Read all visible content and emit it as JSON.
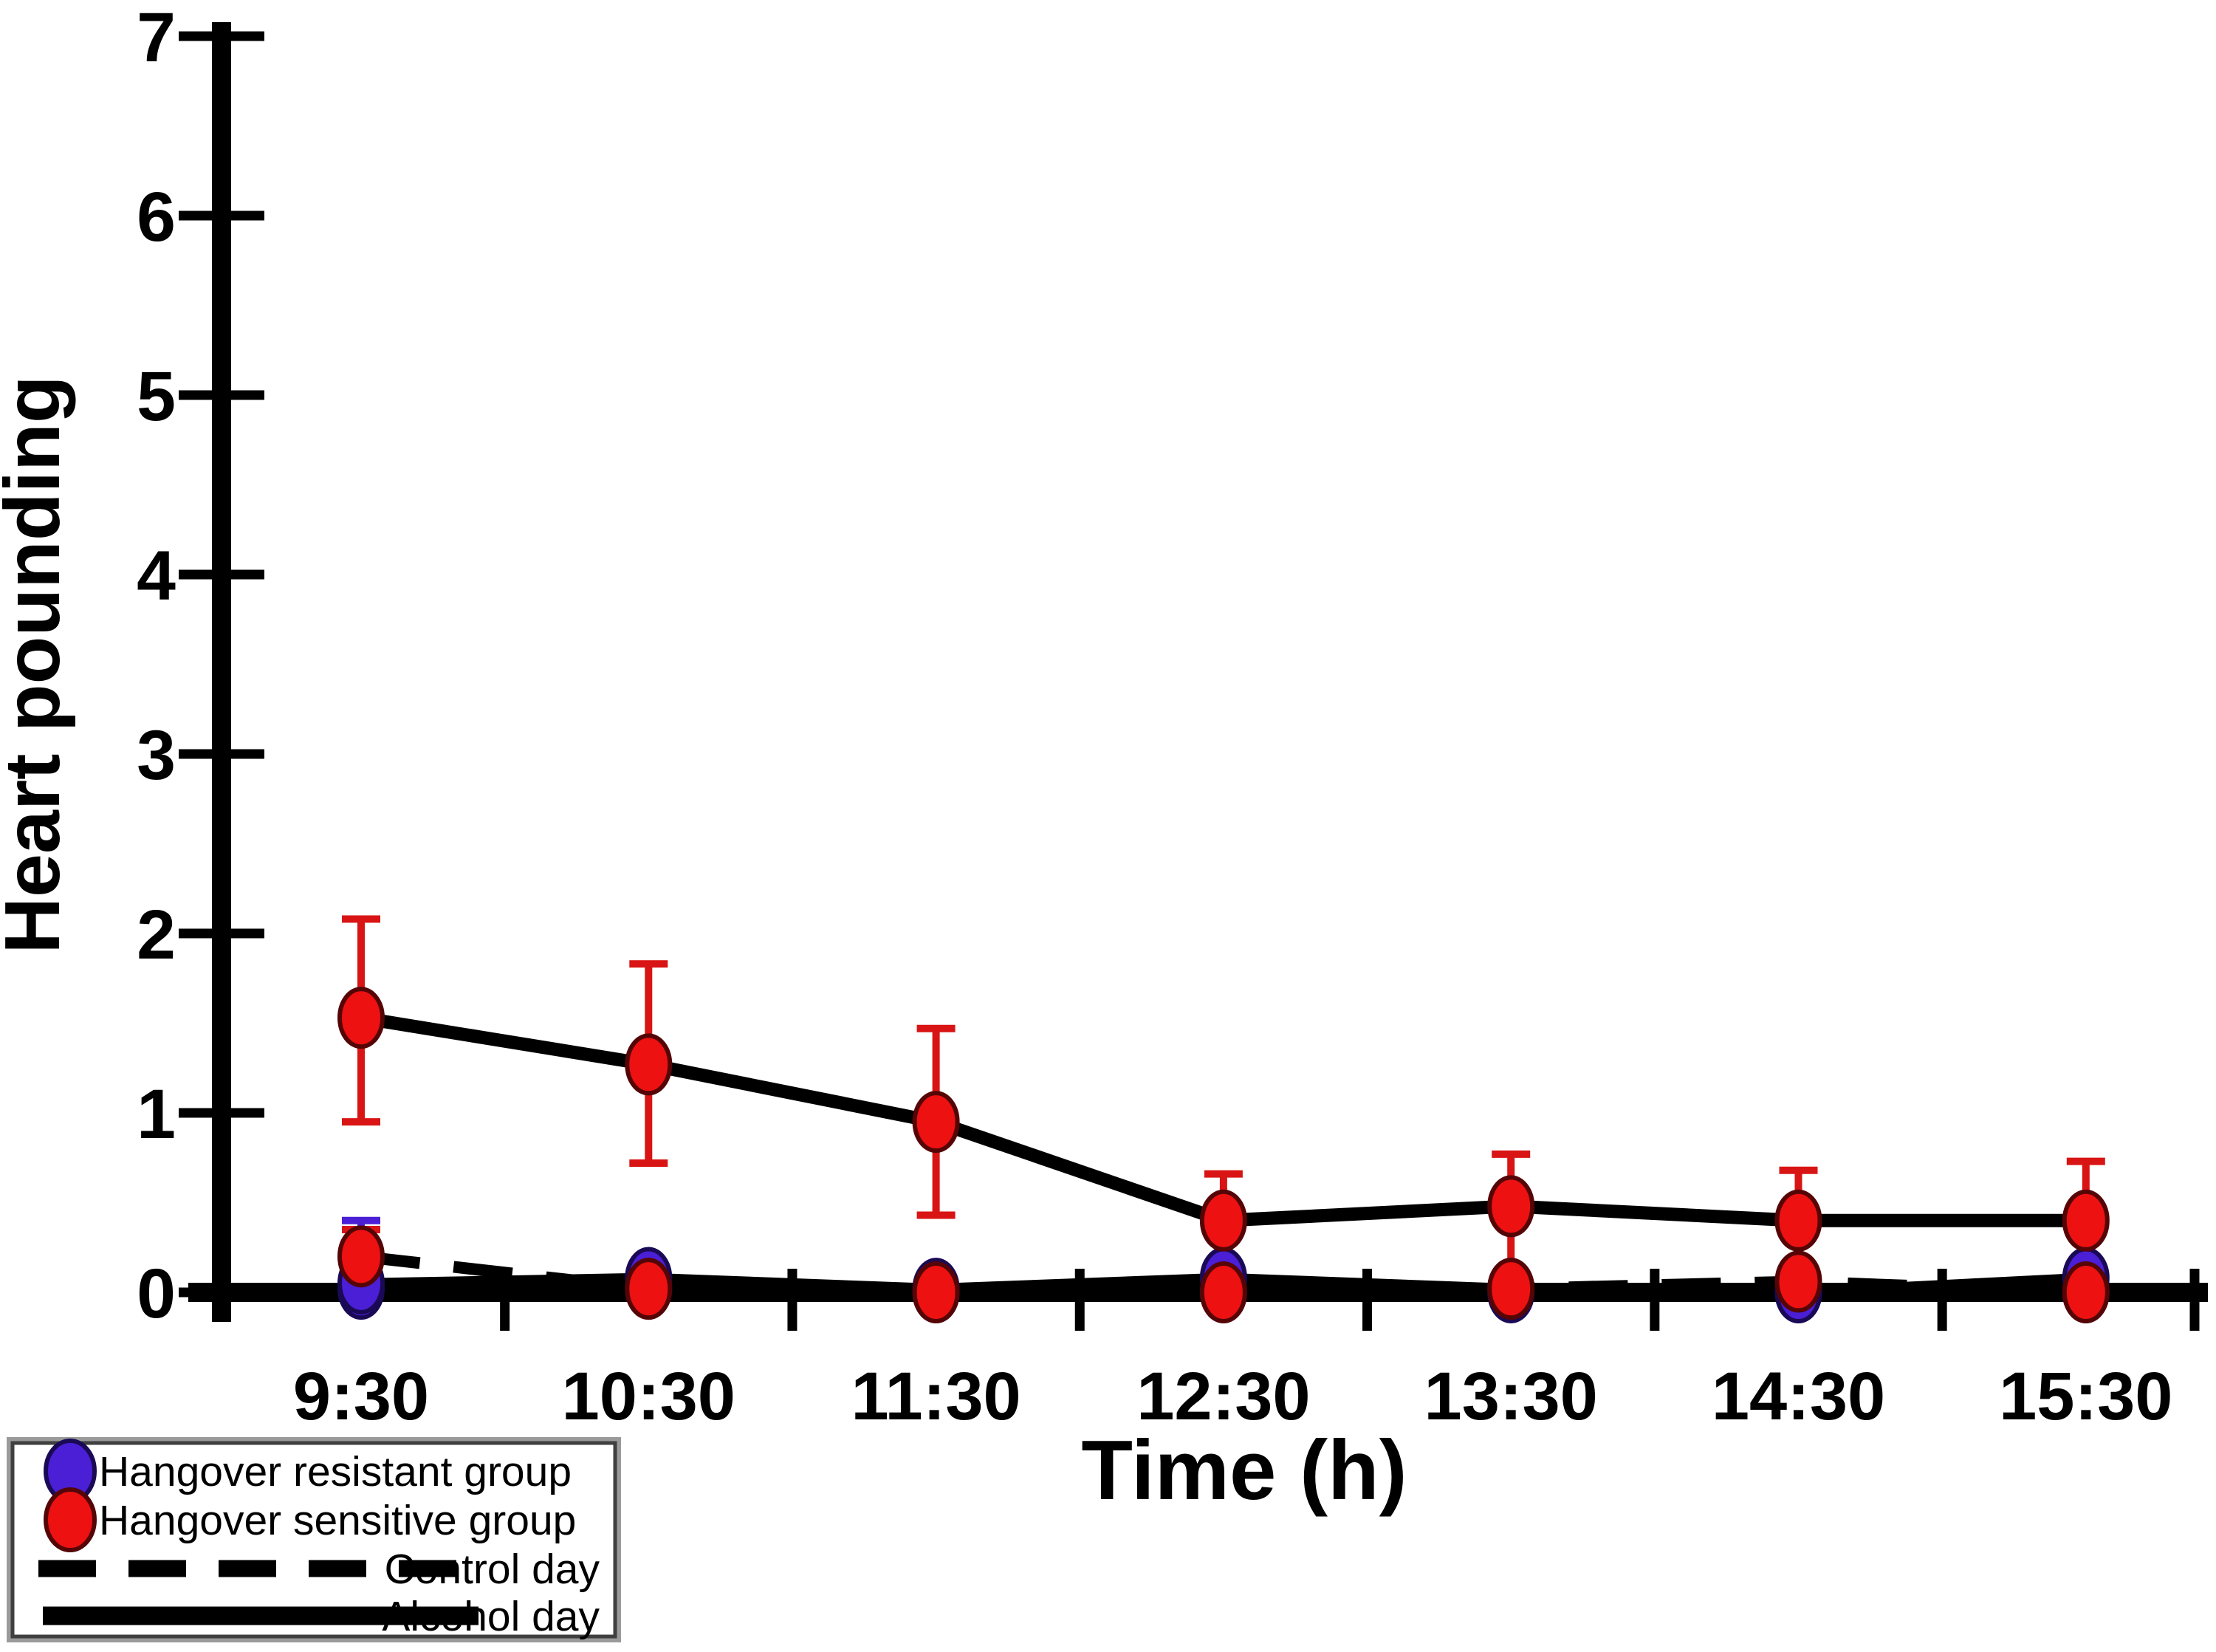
{
  "chart_data": {
    "type": "line",
    "title": "",
    "xlabel": "Time (h)",
    "ylabel": "Heart pounding",
    "categories": [
      "9:30",
      "10:30",
      "11:30",
      "12:30",
      "13:30",
      "14:30",
      "15:30"
    ],
    "y_ticks": [
      7,
      6,
      5,
      4,
      3,
      2,
      1,
      0
    ],
    "ylim": [
      0,
      7
    ],
    "grid": false,
    "legend_position": "bottom-left",
    "axis_color": "#000000",
    "line_color": "#000000",
    "series": [
      {
        "name": "Hangover resistant group - Control day",
        "group": "resistant",
        "day": "control",
        "line_style": "dashed",
        "marker_color": "#4a1fd6",
        "marker_edge": "#1a0a55",
        "error_color": "#4a1fd6",
        "values": [
          0.02,
          0.02,
          0.0,
          0.0,
          0.0,
          0.0,
          0.0
        ],
        "err_lo": [
          null,
          null,
          null,
          null,
          null,
          null,
          null
        ],
        "err_hi": [
          0.4,
          null,
          null,
          null,
          null,
          null,
          null
        ]
      },
      {
        "name": "Hangover resistant group - Alcohol day",
        "group": "resistant",
        "day": "alcohol",
        "line_style": "solid",
        "marker_color": "#4a1fd6",
        "marker_edge": "#1a0a55",
        "error_color": "#4a1fd6",
        "values": [
          0.05,
          0.08,
          0.02,
          0.08,
          0.02,
          0.0,
          0.08
        ],
        "err_lo": [
          null,
          null,
          null,
          null,
          null,
          null,
          null
        ],
        "err_hi": [
          null,
          null,
          null,
          null,
          null,
          null,
          null
        ]
      },
      {
        "name": "Hangover sensitive group - Control day",
        "group": "sensitive",
        "day": "control",
        "line_style": "dashed",
        "marker_color": "#ed1111",
        "marker_edge": "#550505",
        "error_color": "#d91414",
        "values": [
          0.2,
          0.02,
          0.0,
          0.0,
          0.02,
          0.06,
          0.0
        ],
        "err_lo": [
          null,
          null,
          null,
          null,
          null,
          null,
          null
        ],
        "err_hi": [
          0.35,
          null,
          null,
          null,
          null,
          null,
          null
        ]
      },
      {
        "name": "Hangover sensitive group - Alcohol day",
        "group": "sensitive",
        "day": "alcohol",
        "line_style": "solid",
        "marker_color": "#ed1111",
        "marker_edge": "#550505",
        "error_color": "#d91414",
        "values": [
          1.53,
          1.27,
          0.95,
          0.4,
          0.48,
          0.4,
          0.4
        ],
        "err_lo": [
          0.95,
          0.72,
          0.43,
          0.13,
          0.06,
          0.1,
          0.07
        ],
        "err_hi": [
          2.08,
          1.83,
          1.47,
          0.66,
          0.77,
          0.68,
          0.73
        ]
      }
    ],
    "legend": [
      {
        "label": "Hangover resistant group",
        "marker": "circle-icon",
        "color": "#4a1fd6"
      },
      {
        "label": "Hangover sensitive group",
        "marker": "circle-icon",
        "color": "#ed1111"
      },
      {
        "label": "Control day",
        "marker": "dashed-line-icon",
        "color": "#000000"
      },
      {
        "label": "Alcohol day",
        "marker": "solid-line-icon",
        "color": "#000000"
      }
    ]
  }
}
